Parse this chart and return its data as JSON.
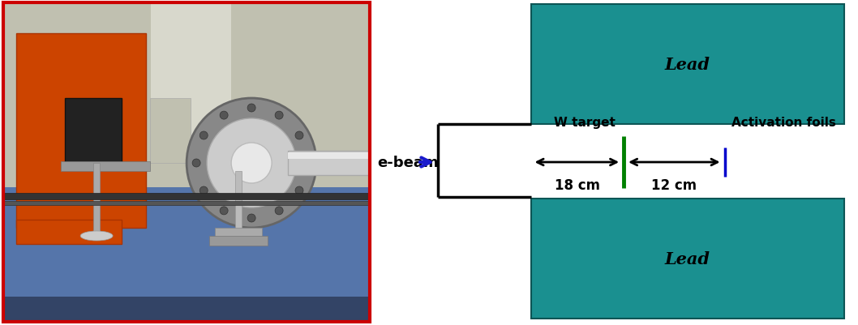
{
  "bg_color": "#ffffff",
  "teal_color": "#1a9090",
  "teal_edge_color": "#0d5555",
  "lead_label": "Lead",
  "w_target_label": "W target",
  "activation_label": "Activation foils",
  "ebeam_label": "e-beam",
  "dist1_label": "18 cm",
  "dist2_label": "12 cm",
  "green_line_color": "#008000",
  "blue_line_color": "#0000cc",
  "blue_arrow_color": "#1a1acc",
  "black_color": "#000000",
  "photo_border_color": "#cc0000",
  "photo_bg_wall": "#c8c8b8",
  "photo_bg_table": "#4a6ea8",
  "photo_orange": "#cc4400",
  "photo_silver": "#aaaaaa",
  "photo_dark": "#444444",
  "diagram_split": 0.435
}
